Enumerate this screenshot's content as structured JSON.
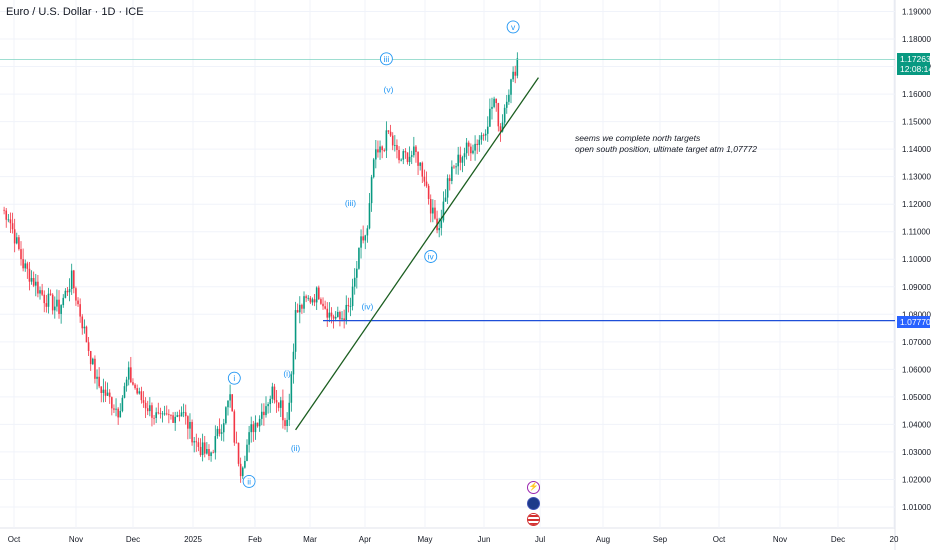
{
  "header": {
    "symbol_title": "Euro / U.S. Dollar · 1D · ICE"
  },
  "annotation": {
    "line1": "seems we complete north targets",
    "line2": "open south position, ultimate target atm 1,07772"
  },
  "price_badge": {
    "price": "1.17263",
    "countdown": "12:08:14",
    "color": "#089981"
  },
  "level_badge": {
    "price": "1.07770",
    "color": "#2962ff"
  },
  "events": [
    {
      "name": "flash-event-icon",
      "glyph": "⚡"
    },
    {
      "name": "eu-flag-icon"
    },
    {
      "name": "us-flag-icon"
    }
  ],
  "chart_data": {
    "type": "candlestick",
    "y_ticks": [
      "1.01000",
      "1.02000",
      "1.03000",
      "1.04000",
      "1.05000",
      "1.06000",
      "1.07000",
      "1.08000",
      "1.09000",
      "1.10000",
      "1.11000",
      "1.12000",
      "1.13000",
      "1.14000",
      "1.15000",
      "1.16000",
      "1.17000",
      "1.18000",
      "1.19000"
    ],
    "ylim": [
      1.006,
      1.192
    ],
    "x_labels": [
      "Oct",
      "Nov",
      "Dec",
      "2025",
      "Feb",
      "Mar",
      "Apr",
      "May",
      "Jun",
      "Jul",
      "Aug",
      "Sep",
      "Oct",
      "Nov",
      "Dec",
      "20"
    ],
    "up_color": "#089981",
    "down_color": "#f23645",
    "anchors": [
      {
        "day": 0,
        "price": 1.118
      },
      {
        "day": 3,
        "price": 1.116
      },
      {
        "day": 10,
        "price": 1.098
      },
      {
        "day": 20,
        "price": 1.086
      },
      {
        "day": 27,
        "price": 1.082
      },
      {
        "day": 33,
        "price": 1.093
      },
      {
        "day": 38,
        "price": 1.077
      },
      {
        "day": 45,
        "price": 1.055
      },
      {
        "day": 55,
        "price": 1.045
      },
      {
        "day": 60,
        "price": 1.058
      },
      {
        "day": 65,
        "price": 1.05
      },
      {
        "day": 75,
        "price": 1.041
      },
      {
        "day": 85,
        "price": 1.045
      },
      {
        "day": 92,
        "price": 1.033
      },
      {
        "day": 98,
        "price": 1.028
      },
      {
        "day": 104,
        "price": 1.04
      },
      {
        "day": 108,
        "price": 1.05
      },
      {
        "day": 110,
        "price": 1.035
      },
      {
        "day": 113,
        "price": 1.024
      },
      {
        "day": 118,
        "price": 1.038
      },
      {
        "day": 124,
        "price": 1.046
      },
      {
        "day": 128,
        "price": 1.052
      },
      {
        "day": 132,
        "price": 1.048
      },
      {
        "day": 134,
        "price": 1.04
      },
      {
        "day": 136,
        "price": 1.048
      },
      {
        "day": 139,
        "price": 1.08
      },
      {
        "day": 143,
        "price": 1.084
      },
      {
        "day": 150,
        "price": 1.088
      },
      {
        "day": 155,
        "price": 1.08
      },
      {
        "day": 160,
        "price": 1.078
      },
      {
        "day": 165,
        "price": 1.083
      },
      {
        "day": 170,
        "price": 1.106
      },
      {
        "day": 173,
        "price": 1.11
      },
      {
        "day": 176,
        "price": 1.136
      },
      {
        "day": 180,
        "price": 1.14
      },
      {
        "day": 183,
        "price": 1.146
      },
      {
        "day": 188,
        "price": 1.136
      },
      {
        "day": 192,
        "price": 1.138
      },
      {
        "day": 196,
        "price": 1.138
      },
      {
        "day": 200,
        "price": 1.13
      },
      {
        "day": 204,
        "price": 1.116
      },
      {
        "day": 207,
        "price": 1.112
      },
      {
        "day": 211,
        "price": 1.128
      },
      {
        "day": 216,
        "price": 1.136
      },
      {
        "day": 220,
        "price": 1.14
      },
      {
        "day": 224,
        "price": 1.142
      },
      {
        "day": 228,
        "price": 1.146
      },
      {
        "day": 233,
        "price": 1.158
      },
      {
        "day": 236,
        "price": 1.147
      },
      {
        "day": 239,
        "price": 1.16
      },
      {
        "day": 242,
        "price": 1.166
      },
      {
        "day": 244,
        "price": 1.173
      }
    ],
    "trendline": {
      "start": {
        "day": 139,
        "price": 1.038
      },
      "end": {
        "day": 254,
        "price": 1.166
      },
      "color": "#1b5e20"
    },
    "horizontal_level": {
      "price": 1.0777,
      "start_day": 152,
      "color": "#1e4fd8"
    },
    "current_price_line": {
      "price": 1.1726,
      "color": "#7fd3c2"
    },
    "wave_labels": [
      {
        "text": "i",
        "day": 110,
        "price": 1.0568,
        "circled": true
      },
      {
        "text": "ii",
        "day": 117,
        "price": 1.0193,
        "circled": true
      },
      {
        "text": "(i)",
        "day": 135,
        "price": 1.0585,
        "circled": false
      },
      {
        "text": "(ii)",
        "day": 139,
        "price": 1.0315,
        "circled": false
      },
      {
        "text": "(iii)",
        "day": 165,
        "price": 1.1205,
        "circled": false
      },
      {
        "text": "(iv)",
        "day": 173,
        "price": 1.0828,
        "circled": false
      },
      {
        "text": "iii",
        "day": 182,
        "price": 1.1728,
        "circled": true
      },
      {
        "text": "(v)",
        "day": 183,
        "price": 1.1616,
        "circled": false
      },
      {
        "text": "iv",
        "day": 203,
        "price": 1.101,
        "circled": true
      },
      {
        "text": "v",
        "day": 242,
        "price": 1.1844,
        "circled": true
      }
    ]
  }
}
